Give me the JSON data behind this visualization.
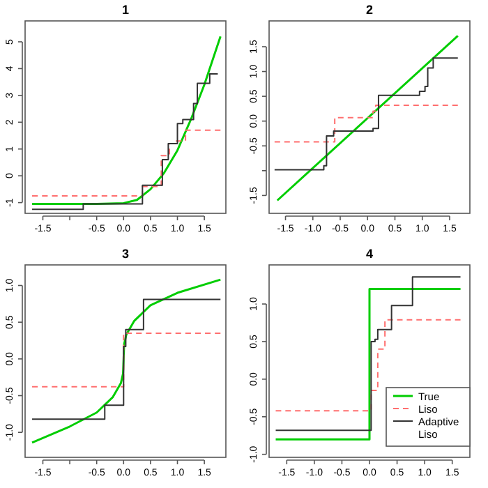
{
  "chart_data": [
    {
      "type": "line",
      "title": "1",
      "xlim": [
        -1.83,
        1.9
      ],
      "ylim": [
        -1.4,
        5.78
      ],
      "xticks": [
        -1.5,
        {
          "value": -1,
          "label": null
        },
        -0.5,
        {
          "value": 0,
          "label": "0.0"
        },
        0.5,
        {
          "value": 1,
          "label": "1.0"
        },
        1.5
      ],
      "yticks": [
        -1,
        0,
        1,
        2,
        3,
        4,
        5
      ],
      "series": [
        {
          "type": "line",
          "color": "#00cd00",
          "x": [
            -1.7,
            -1,
            -0.5,
            0,
            0.25,
            0.5,
            0.75,
            1,
            1.25,
            1.5,
            1.8
          ],
          "values": [
            -1.05,
            -1.05,
            -1.05,
            -1.02,
            -0.9,
            -0.5,
            0.1,
            0.95,
            2.1,
            3.4,
            5.2
          ]
        },
        {
          "type": "step",
          "color": "#ff6f6f",
          "line_style": "dashed",
          "x": [
            -1.7,
            0.35,
            0.7,
            0.85,
            0.95,
            1.15,
            1.8
          ],
          "values": [
            -0.75,
            -0.4,
            0.75,
            1.2,
            1.3,
            1.7,
            1.7
          ]
        },
        {
          "type": "step",
          "color": "#333333",
          "x": [
            -1.7,
            -0.75,
            0.35,
            0.72,
            0.83,
            1.0,
            1.1,
            1.3,
            1.37,
            1.47,
            1.6,
            1.75
          ],
          "values": [
            -1.25,
            -1.05,
            -0.35,
            0.6,
            1.2,
            1.95,
            2.1,
            2.7,
            3.45,
            3.45,
            3.8,
            3.8
          ]
        }
      ]
    },
    {
      "type": "line",
      "title": "2",
      "xlim": [
        -1.8,
        1.87
      ],
      "ylim": [
        -1.86,
        2.02
      ],
      "xticks": [
        -1.5,
        {
          "value": -1,
          "label": "-1.0"
        },
        -0.5,
        {
          "value": 0,
          "label": "0.0"
        },
        0.5,
        {
          "value": 1,
          "label": "1.0"
        },
        1.5
      ],
      "yticks": [
        -1.5,
        {
          "value": -1,
          "label": null
        },
        -0.5,
        {
          "value": 0,
          "label": "0.0"
        },
        0.5,
        {
          "value": 1,
          "label": "1.0"
        },
        1.5
      ],
      "series": [
        {
          "type": "line",
          "color": "#00cd00",
          "x": [
            -1.65,
            1.65
          ],
          "values": [
            -1.6,
            1.72
          ]
        },
        {
          "type": "step",
          "color": "#ff6f6f",
          "line_style": "dashed",
          "x": [
            -1.7,
            -0.6,
            0.1,
            0.15,
            1.65
          ],
          "values": [
            -0.42,
            0.07,
            0.2,
            0.32,
            0.32
          ]
        },
        {
          "type": "step",
          "color": "#333333",
          "x": [
            -1.7,
            -0.8,
            -0.75,
            -0.62,
            0.1,
            0.2,
            0.95,
            1.05,
            1.1,
            1.2,
            1.65
          ],
          "values": [
            -0.98,
            -0.9,
            -0.3,
            -0.2,
            -0.15,
            0.52,
            0.6,
            0.7,
            1.07,
            1.27,
            1.27
          ]
        }
      ]
    },
    {
      "type": "line",
      "title": "3",
      "xlim": [
        -1.83,
        1.9
      ],
      "ylim": [
        -1.34,
        1.28
      ],
      "xticks": [
        -1.5,
        {
          "value": -1,
          "label": null
        },
        -0.5,
        {
          "value": 0,
          "label": "0.0"
        },
        0.5,
        {
          "value": 1,
          "label": "1.0"
        },
        1.5
      ],
      "yticks": [
        {
          "value": -1,
          "label": "-1.0"
        },
        -0.5,
        {
          "value": 0,
          "label": "0.0"
        },
        0.5,
        {
          "value": 1,
          "label": "1.0"
        }
      ],
      "series": [
        {
          "type": "line",
          "color": "#00cd00",
          "x": [
            -1.7,
            -1,
            -0.5,
            -0.2,
            -0.05,
            -0.01,
            0,
            0.01,
            0.05,
            0.2,
            0.5,
            1,
            1.8
          ],
          "values": [
            -1.14,
            -0.92,
            -0.73,
            -0.52,
            -0.33,
            -0.2,
            0,
            0.2,
            0.33,
            0.52,
            0.73,
            0.9,
            1.08
          ]
        },
        {
          "type": "step",
          "color": "#ff6f6f",
          "line_style": "dashed",
          "x": [
            -1.7,
            0,
            1.8
          ],
          "values": [
            -0.38,
            0.35,
            0.35
          ]
        },
        {
          "type": "step",
          "color": "#333333",
          "x": [
            -1.7,
            -0.35,
            0,
            0.04,
            0.37,
            1.8
          ],
          "values": [
            -0.82,
            -0.63,
            0.17,
            0.4,
            0.81,
            0.81
          ]
        }
      ]
    },
    {
      "type": "line",
      "title": "4",
      "legend": "bottom right",
      "xlim": [
        -1.82,
        1.82
      ],
      "ylim": [
        -1.04,
        1.52
      ],
      "xticks": [
        -1.5,
        {
          "value": -1,
          "label": "-1.0"
        },
        -0.5,
        {
          "value": 0,
          "label": "0.0"
        },
        0.5,
        {
          "value": 1,
          "label": "1.0"
        },
        1.5
      ],
      "yticks": [
        {
          "value": -1,
          "label": "-1.0"
        },
        -0.5,
        {
          "value": 0,
          "label": "0.0"
        },
        0.5,
        {
          "value": 1,
          "label": "1.0"
        }
      ],
      "series": [
        {
          "type": "step",
          "name": "True",
          "color": "#00cd00",
          "x": [
            -1.7,
            0,
            1.65
          ],
          "values": [
            -0.8,
            1.2,
            1.2
          ]
        },
        {
          "type": "step",
          "name": "Liso",
          "color": "#ff6f6f",
          "line_style": "dashed",
          "x": [
            -1.7,
            0.03,
            0.15,
            0.28,
            1.65
          ],
          "values": [
            -0.42,
            -0.15,
            0.4,
            0.79,
            0.79
          ]
        },
        {
          "type": "step",
          "name": "Adaptive Liso",
          "color": "#333333",
          "x": [
            -1.7,
            0.03,
            0.1,
            0.15,
            0.4,
            0.78,
            1.65
          ],
          "values": [
            -0.68,
            0.5,
            0.53,
            0.66,
            0.98,
            1.36,
            1.36
          ]
        }
      ]
    }
  ]
}
